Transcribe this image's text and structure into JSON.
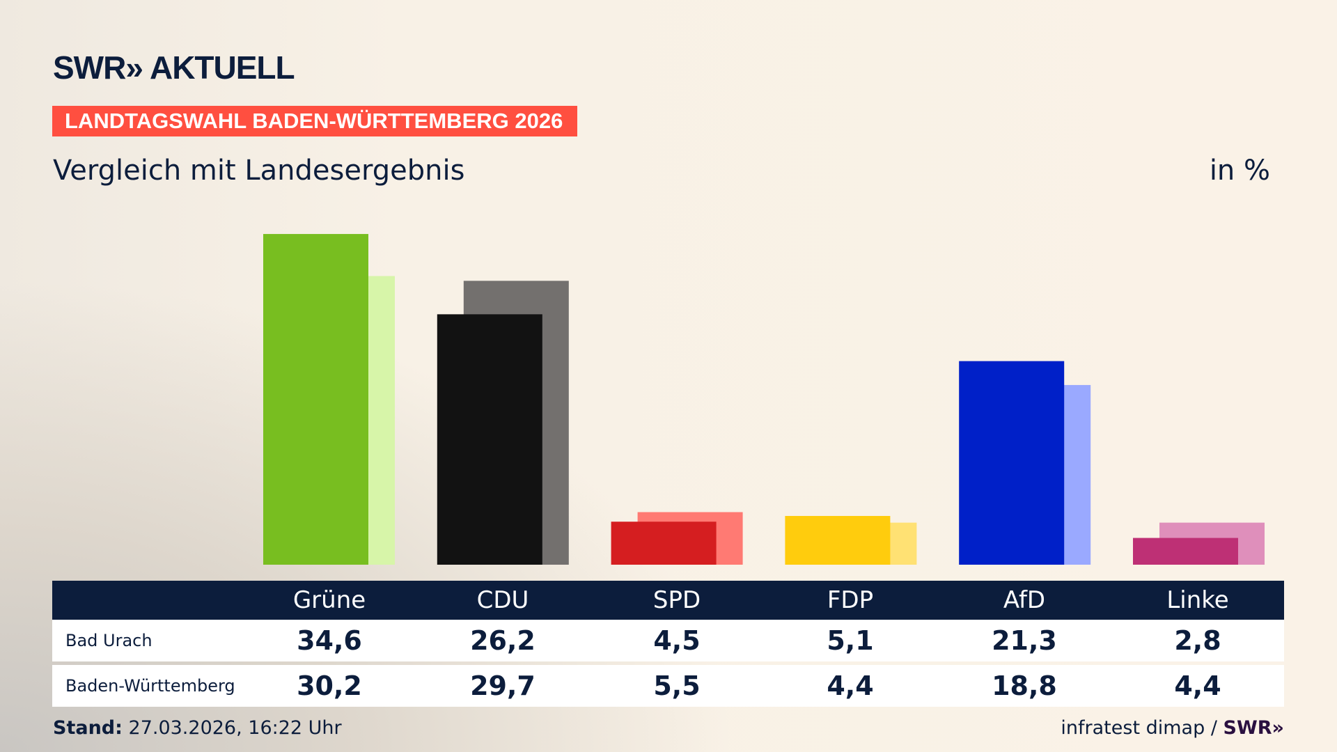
{
  "logo": {
    "text": "SWR» AKTUELL"
  },
  "banner": "LANDTAGSWAHL BADEN-WÜRTTEMBERG 2026",
  "subtitle": "Vergleich mit Landesergebnis",
  "unit": "in %",
  "chart_data": {
    "type": "bar",
    "categories": [
      "Grüne",
      "CDU",
      "SPD",
      "FDP",
      "AfD",
      "Linke"
    ],
    "series": [
      {
        "name": "Bad Urach",
        "values": [
          34.6,
          26.2,
          4.5,
          5.1,
          21.3,
          2.8
        ],
        "colors": [
          "#78be20",
          "#121212",
          "#d51e20",
          "#ffcc0d",
          "#0020c8",
          "#be3075"
        ]
      },
      {
        "name": "Baden-Württemberg",
        "values": [
          30.2,
          29.7,
          5.5,
          4.4,
          18.8,
          4.4
        ],
        "colors": [
          "#d7f5a9",
          "#73706e",
          "#ff7a73",
          "#ffe173",
          "#9aa9ff",
          "#df8fbb"
        ]
      }
    ],
    "display_values": [
      [
        "34,6",
        "26,2",
        "4,5",
        "5,1",
        "21,3",
        "2,8"
      ],
      [
        "30,2",
        "29,7",
        "5,5",
        "4,4",
        "18,8",
        "4,4"
      ]
    ]
  },
  "footer": {
    "stand_label": "Stand:",
    "stand_value": "27.03.2026, 16:22 Uhr",
    "source": "infratest dimap /",
    "source_logo": "SWR»"
  }
}
